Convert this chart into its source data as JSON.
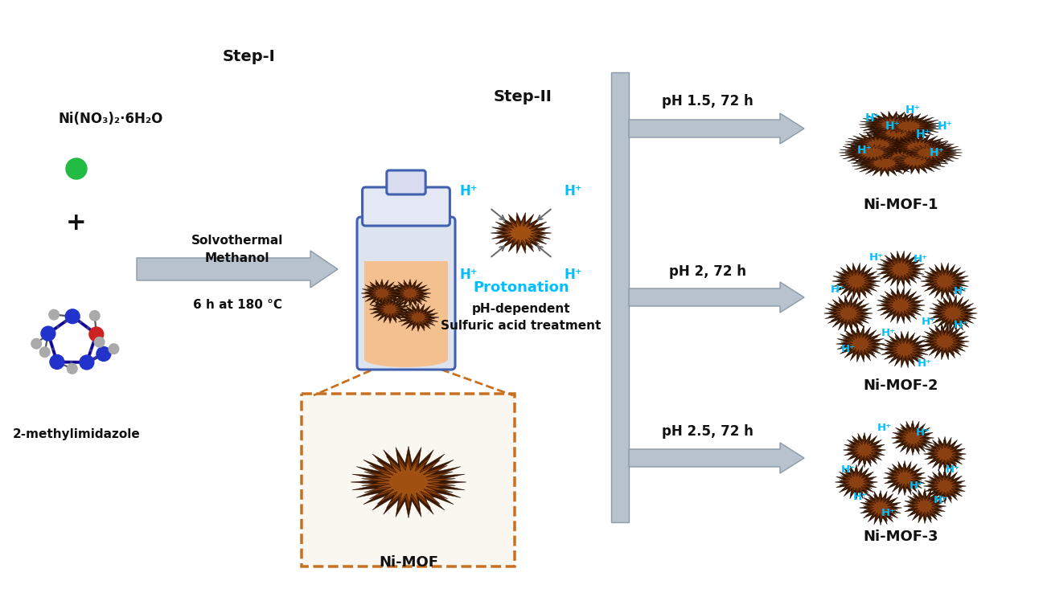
{
  "background_color": "#ffffff",
  "step1_label": "Step-I",
  "step2_label": "Step-II",
  "reactant1_label": "Ni(NO₃)₂·6H₂O",
  "reactant2_label": "2-methylimidazole",
  "plus_label": "+",
  "arrow1_label_line1": "Solvothermal",
  "arrow1_label_line2": "Methanol",
  "arrow1_label_line3": "6 h at 180 °C",
  "nimof_label": "Ni-MOF",
  "protonation_label": "Protonation",
  "acid_label_line1": "pH-dependent",
  "acid_label_line2": "Sulfuric acid treatment",
  "ph1_label": "pH 1.5, 72 h",
  "ph2_label": "pH 2, 72 h",
  "ph3_label": "pH 2.5, 72 h",
  "nimof1_label": "Ni-MOF-1",
  "nimof2_label": "Ni-MOF-2",
  "nimof3_label": "Ni-MOF-3",
  "arrow_color": "#c0c8d0",
  "arrow_edge_color": "#9aaab8",
  "cyan_color": "#00bfff",
  "text_color": "#111111",
  "green_dot_color": "#22bb44",
  "mof_dark": "#3d1a00",
  "mof_mid": "#7a3a08",
  "mof_light": "#a05818",
  "reactor_fill": "#f5c090",
  "reactor_fill_top": "#e8e8f0",
  "reactor_stroke": "#4060b0",
  "dashed_box_color": "#c87020",
  "molecule_blue": "#2233cc",
  "molecule_red": "#cc2222",
  "molecule_gray": "#aaaaaa"
}
